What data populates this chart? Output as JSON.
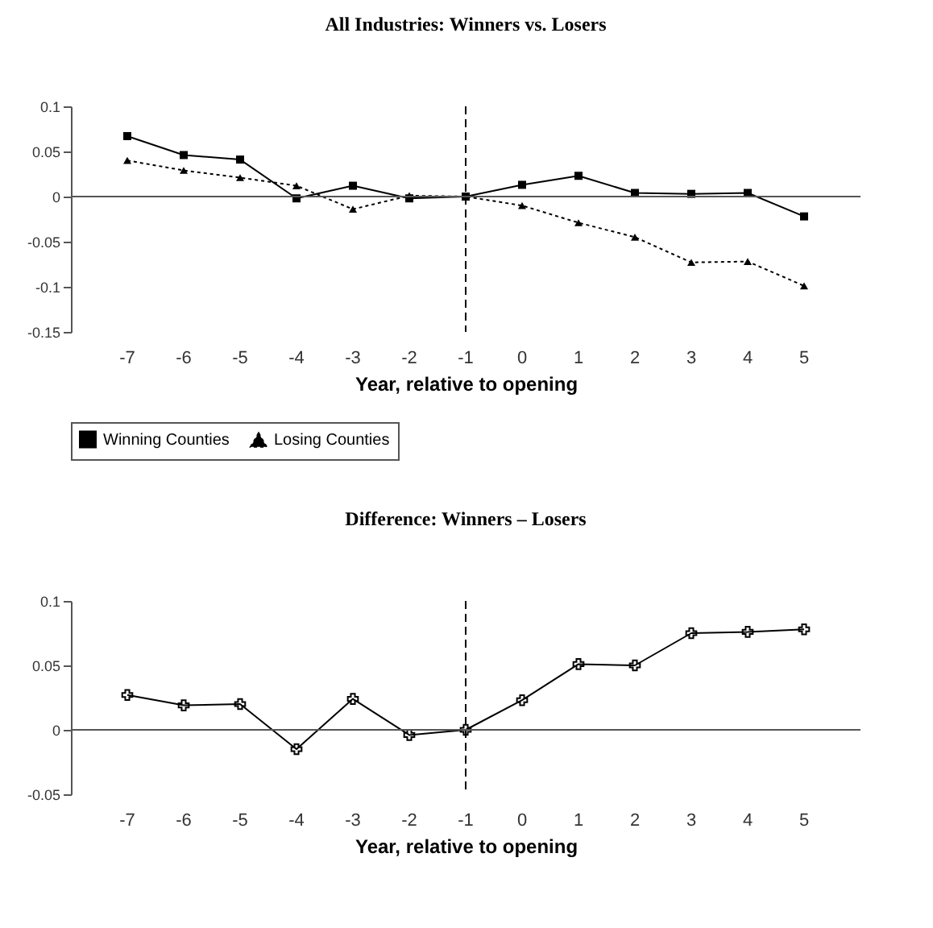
{
  "chart_data": [
    {
      "type": "line",
      "title": "All Industries: Winners vs. Losers",
      "xlabel": "Year, relative to opening",
      "categories": [
        "-7",
        "-6",
        "-5",
        "-4",
        "-3",
        "-2",
        "-1",
        "0",
        "1",
        "2",
        "3",
        "4",
        "5"
      ],
      "series": [
        {
          "name": "Winning Counties",
          "color": "#000000",
          "marker": "square",
          "line_style": "solid",
          "values": [
            0.067,
            0.046,
            0.041,
            -0.002,
            0.012,
            -0.002,
            0,
            0.013,
            0.023,
            0.004,
            0.003,
            0.004,
            -0.022
          ]
        },
        {
          "name": "Losing Counties",
          "color": "#000000",
          "marker": "triangle",
          "line_style": "dotted",
          "values": [
            0.04,
            0.029,
            0.021,
            0.012,
            -0.014,
            0.001,
            0,
            -0.01,
            -0.029,
            -0.045,
            -0.073,
            -0.072,
            -0.099
          ]
        }
      ],
      "ylim": [
        -0.15,
        0.1
      ],
      "yticks": [
        -0.15,
        -0.1,
        -0.05,
        0,
        0.05,
        0.1
      ],
      "grid": false,
      "legend": "bottom",
      "ref_lines": [
        {
          "axis": "x",
          "value": "-1",
          "line_style": "dashed",
          "color": "#000000"
        },
        {
          "axis": "y",
          "value": 0,
          "line_style": "solid",
          "color": "#555555"
        }
      ]
    },
    {
      "type": "line",
      "title": "Difference: Winners – Losers",
      "xlabel": "Year, relative to opening",
      "categories": [
        "-7",
        "-6",
        "-5",
        "-4",
        "-3",
        "-2",
        "-1",
        "0",
        "1",
        "2",
        "3",
        "4",
        "5"
      ],
      "series": [
        {
          "color": "#000000",
          "marker": "cross",
          "line_style": "solid",
          "values": [
            0.027,
            0.019,
            0.02,
            -0.015,
            0.024,
            -0.004,
            0,
            0.023,
            0.051,
            0.05,
            0.075,
            0.076,
            0.078
          ]
        }
      ],
      "ylim": [
        -0.05,
        0.1
      ],
      "yticks": [
        -0.05,
        0,
        0.05,
        0.1
      ],
      "grid": false,
      "legend": false,
      "ref_lines": [
        {
          "axis": "x",
          "value": "-1",
          "line_style": "dashed",
          "color": "#000000"
        },
        {
          "axis": "y",
          "value": 0,
          "line_style": "solid",
          "color": "#555555"
        }
      ]
    }
  ]
}
